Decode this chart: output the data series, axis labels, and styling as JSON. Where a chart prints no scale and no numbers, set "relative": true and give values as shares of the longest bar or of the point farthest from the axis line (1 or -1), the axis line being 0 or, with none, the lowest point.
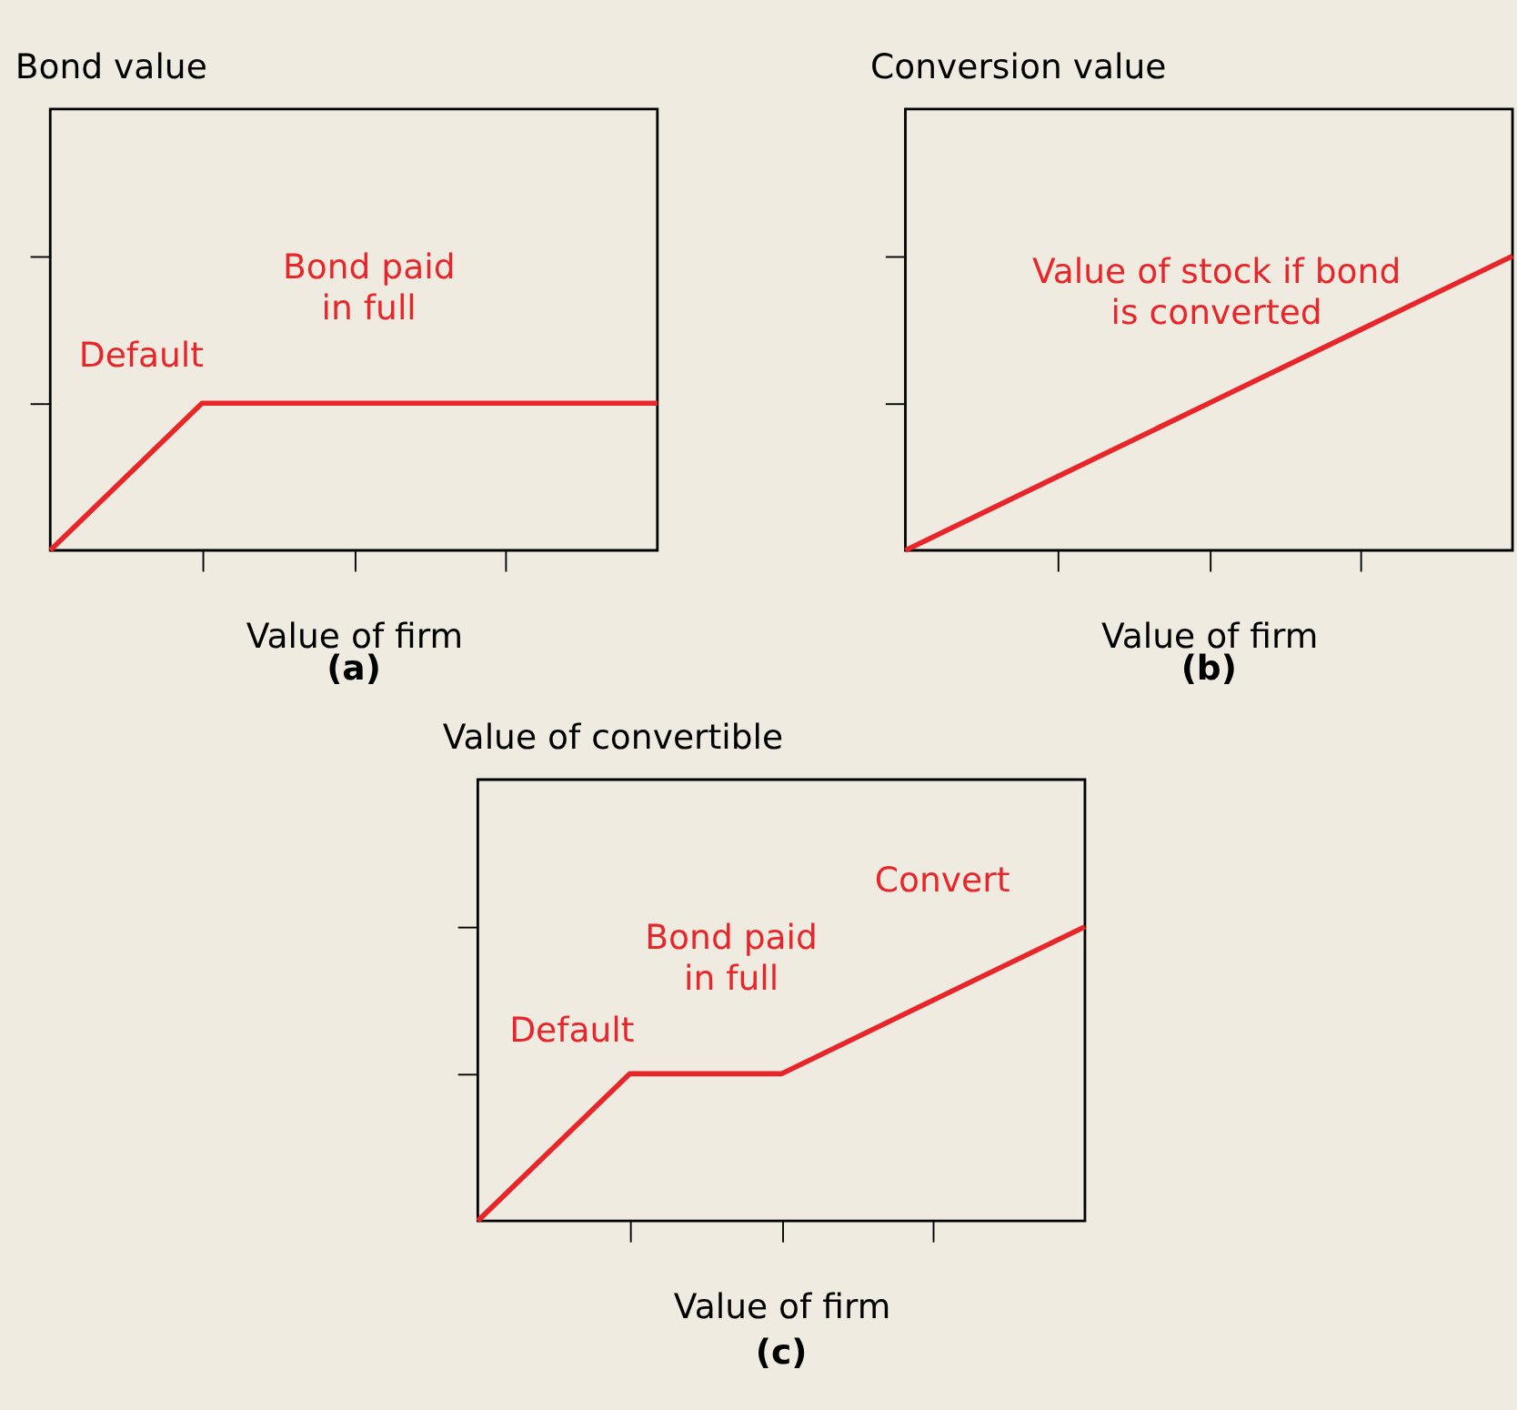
{
  "chart_data": [
    {
      "type": "line",
      "title": "Bond value",
      "xlabel": "Value of firm",
      "categories": [
        null,
        null,
        null,
        null,
        null
      ],
      "relative": true,
      "series": [
        {
          "color": "#e8262a",
          "values": [
            0,
            1,
            1,
            1,
            1
          ]
        }
      ],
      "annotations": [
        "Default",
        "Bond paid\nin full",
        "(a)"
      ]
    },
    {
      "type": "line",
      "title": "Conversion value",
      "xlabel": "Value of firm",
      "categories": [
        null,
        null,
        null,
        null,
        null
      ],
      "relative": true,
      "series": [
        {
          "color": "#e8262a",
          "values": [
            0,
            0.25,
            0.5,
            0.75,
            1
          ]
        }
      ],
      "annotations": [
        "Value of stock if bond\nis converted",
        "(b)"
      ]
    },
    {
      "type": "line",
      "title": "Value of convertible",
      "xlabel": "Value of firm",
      "categories": [
        null,
        null,
        null,
        null,
        null
      ],
      "relative": true,
      "series": [
        {
          "color": "#e8262a",
          "values": [
            0,
            0.5,
            0.5,
            0.75,
            1
          ]
        }
      ],
      "annotations": [
        "Default",
        "Bond paid\nin full",
        "Convert",
        "(c)"
      ]
    }
  ]
}
